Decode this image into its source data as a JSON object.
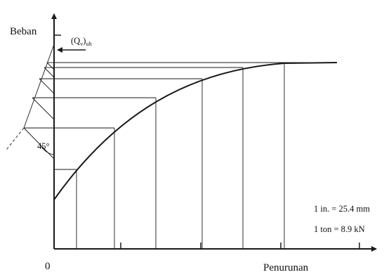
{
  "diagram": {
    "y_axis_label": "Beban",
    "x_axis_label": "Penurunan",
    "origin_label": "0",
    "ultimate_load": {
      "main": "(Q",
      "sub_v": "v",
      "close": ")",
      "sub_ult": "ult"
    },
    "angle_label": "45°",
    "notes": {
      "inch": "1 in. = 25.4 mm",
      "ton": "1 ton = 8.9 kN"
    },
    "colors": {
      "line": "#1a1a1a",
      "background": "#ffffff"
    }
  }
}
